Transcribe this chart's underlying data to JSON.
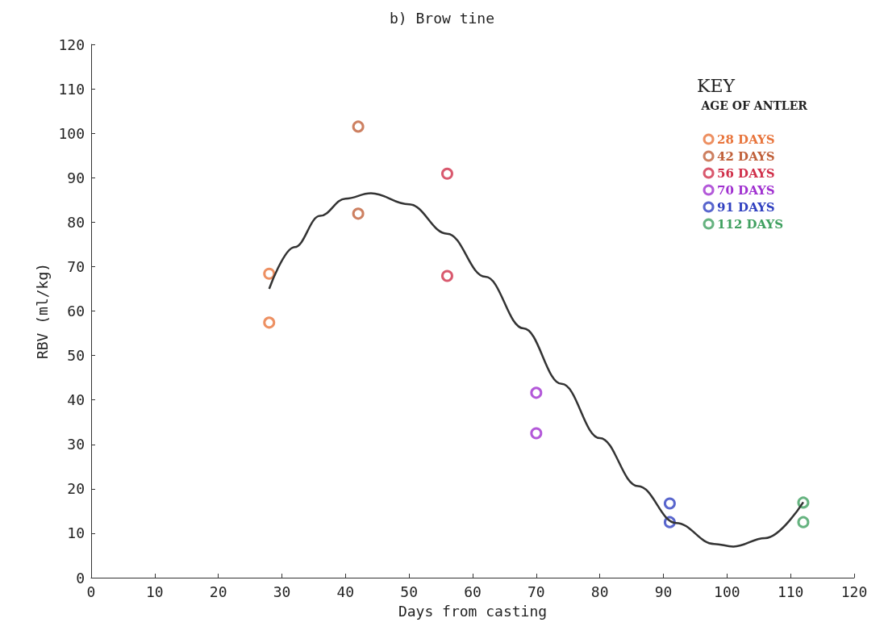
{
  "chart_data": {
    "type": "scatter",
    "title": "b) Brow tine",
    "xlabel": "Days from casting",
    "ylabel": "RBV (ml/kg)",
    "legend_title": "KEY\nAGE OF ANTLER",
    "xlim": [
      0,
      120
    ],
    "xticks": [
      0,
      10,
      20,
      30,
      40,
      50,
      60,
      70,
      80,
      90,
      100,
      110,
      120
    ],
    "ylim": [
      0,
      120
    ],
    "yticks": [
      0,
      10,
      20,
      30,
      40,
      50,
      60,
      70,
      80,
      90,
      100,
      110,
      120
    ],
    "grid": false,
    "legend": "top right",
    "marker": "circle",
    "series": [
      {
        "name": "28 DAYS",
        "color": "#e8743b",
        "x": [
          28,
          28
        ],
        "values": [
          68.4,
          57.4
        ]
      },
      {
        "name": "42 DAYS",
        "color": "#c0603a",
        "x": [
          42,
          42
        ],
        "values": [
          101.5,
          81.9
        ]
      },
      {
        "name": "56 DAYS",
        "color": "#d0304a",
        "x": [
          56,
          56
        ],
        "values": [
          90.9,
          67.9
        ]
      },
      {
        "name": "70 DAYS",
        "color": "#a030d0",
        "x": [
          70,
          70
        ],
        "values": [
          41.6,
          32.5
        ]
      },
      {
        "name": "91 DAYS",
        "color": "#3040c0",
        "x": [
          91,
          91
        ],
        "values": [
          16.7,
          12.5
        ]
      },
      {
        "name": "112 DAYS",
        "color": "#40a060",
        "x": [
          112,
          112
        ],
        "values": [
          16.9,
          12.5
        ]
      },
      {
        "type": "line",
        "color": "#333333",
        "marker": "none",
        "line_style": "solid",
        "x": [
          28,
          32,
          36,
          40,
          44,
          50,
          56,
          62,
          68,
          74,
          80,
          86,
          92,
          98,
          101,
          106,
          112
        ],
        "values": [
          65,
          74.4,
          81.4,
          85.3,
          86.5,
          84,
          77.4,
          67.7,
          56.1,
          43.6,
          31.4,
          20.6,
          12.3,
          7.6,
          7,
          8.9,
          17
        ]
      }
    ]
  }
}
